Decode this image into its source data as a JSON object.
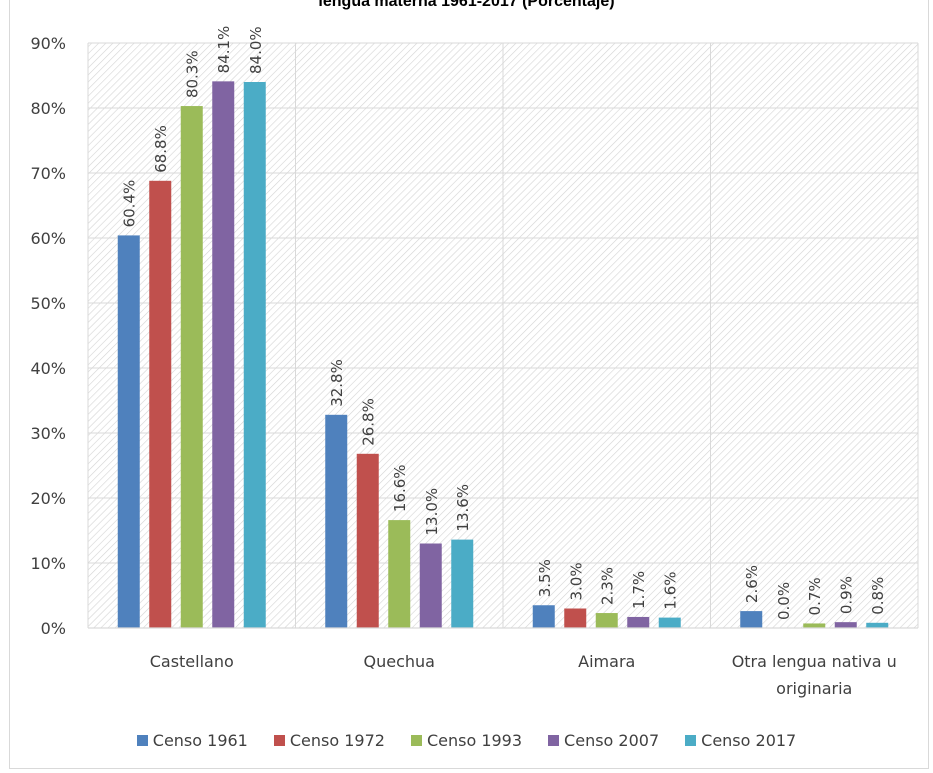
{
  "chart_data": {
    "type": "bar",
    "title": "lengua materna 1961-2017 (Porcentaje)",
    "categories": [
      "Castellano",
      "Quechua",
      "Aimara",
      "Otra lengua nativa u originaria"
    ],
    "category_label_lines": [
      [
        "Castellano"
      ],
      [
        "Quechua"
      ],
      [
        "Aimara"
      ],
      [
        "Otra lengua nativa u",
        "originaria"
      ]
    ],
    "series": [
      {
        "name": "Censo 1961",
        "color": "#4f81bd",
        "values": [
          60.4,
          32.8,
          3.5,
          2.6
        ],
        "labels": [
          "60.4%",
          "32.8%",
          "3.5%",
          "2.6%"
        ]
      },
      {
        "name": "Censo 1972",
        "color": "#c0504d",
        "values": [
          68.8,
          26.8,
          3.0,
          0.0
        ],
        "labels": [
          "68.8%",
          "26.8%",
          "3.0%",
          "0.0%"
        ]
      },
      {
        "name": "Censo 1993",
        "color": "#9bbb59",
        "values": [
          80.3,
          16.6,
          2.3,
          0.7
        ],
        "labels": [
          "80.3%",
          "16.6%",
          "2.3%",
          "0.7%"
        ]
      },
      {
        "name": "Censo 2007",
        "color": "#8064a2",
        "values": [
          84.1,
          13.0,
          1.7,
          0.9
        ],
        "labels": [
          "84.1%",
          "13.0%",
          "1.7%",
          "0.9%"
        ]
      },
      {
        "name": "Censo 2017",
        "color": "#4bacc6",
        "values": [
          84.0,
          13.6,
          1.6,
          0.8
        ],
        "labels": [
          "84.0%",
          "13.6%",
          "1.6%",
          "0.8%"
        ]
      }
    ],
    "ylim": [
      0,
      90
    ],
    "yticks": [
      0,
      10,
      20,
      30,
      40,
      50,
      60,
      70,
      80,
      90
    ],
    "ytick_labels": [
      "0%",
      "10%",
      "20%",
      "30%",
      "40%",
      "50%",
      "60%",
      "70%",
      "80%",
      "90%"
    ],
    "xlabel": "",
    "ylabel": "",
    "grid": true,
    "legend_position": "bottom"
  }
}
